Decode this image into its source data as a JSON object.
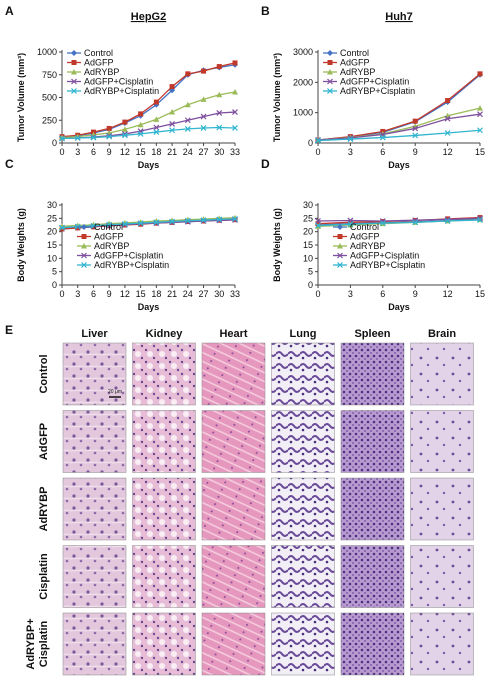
{
  "chart_data": [
    {
      "type": "line",
      "panel": "A",
      "title": "HepG2",
      "x_label": "Days",
      "y_label": "Tumor Volume (mm³)",
      "x": [
        0,
        3,
        6,
        9,
        12,
        15,
        18,
        21,
        24,
        27,
        30,
        33
      ],
      "xlim": [
        0,
        33
      ],
      "xticks": [
        0,
        3,
        6,
        9,
        12,
        15,
        18,
        21,
        24,
        27,
        30,
        33
      ],
      "ylim": [
        0,
        1000
      ],
      "yticks": [
        0,
        250,
        500,
        750,
        1000
      ],
      "legend": "upper left",
      "series": [
        {
          "name": "Control",
          "color": "#4472c4",
          "marker": "diamond",
          "values": [
            70,
            80,
            110,
            150,
            220,
            300,
            420,
            580,
            750,
            800,
            830,
            860
          ]
        },
        {
          "name": "AdGFP",
          "color": "#c0392b",
          "marker": "square",
          "values": [
            70,
            85,
            120,
            160,
            230,
            320,
            450,
            620,
            760,
            790,
            840,
            880
          ]
        },
        {
          "name": "AdRYBP",
          "color": "#9bbb59",
          "marker": "triangle",
          "values": [
            60,
            70,
            90,
            110,
            150,
            200,
            260,
            340,
            420,
            480,
            530,
            560
          ]
        },
        {
          "name": "AdGFP+Cisplatin",
          "color": "#7f4f9f",
          "marker": "x",
          "values": [
            50,
            55,
            65,
            80,
            100,
            130,
            170,
            210,
            250,
            290,
            330,
            340
          ]
        },
        {
          "name": "AdRYBP+Cisplatin",
          "color": "#31b5d0",
          "marker": "x",
          "values": [
            50,
            55,
            60,
            70,
            85,
            100,
            120,
            140,
            155,
            165,
            170,
            165
          ]
        }
      ]
    },
    {
      "type": "line",
      "panel": "B",
      "title": "Huh7",
      "x_label": "Days",
      "y_label": "Tumor Volume (mm³)",
      "x": [
        0,
        3,
        6,
        9,
        12,
        15
      ],
      "xlim": [
        0,
        15
      ],
      "xticks": [
        0,
        3,
        6,
        9,
        12,
        15
      ],
      "ylim": [
        0,
        3000
      ],
      "yticks": [
        0,
        1000,
        2000,
        3000
      ],
      "legend": "upper left",
      "series": [
        {
          "name": "Control",
          "color": "#4472c4",
          "marker": "diamond",
          "values": [
            100,
            200,
            350,
            700,
            1350,
            2250
          ]
        },
        {
          "name": "AdGFP",
          "color": "#c0392b",
          "marker": "square",
          "values": [
            100,
            210,
            380,
            720,
            1400,
            2280
          ]
        },
        {
          "name": "AdRYBP",
          "color": "#9bbb59",
          "marker": "triangle",
          "values": [
            100,
            180,
            300,
            550,
            900,
            1150
          ]
        },
        {
          "name": "AdGFP+Cisplatin",
          "color": "#7f4f9f",
          "marker": "x",
          "values": [
            100,
            170,
            280,
            480,
            800,
            950
          ]
        },
        {
          "name": "AdRYBP+Cisplatin",
          "color": "#31b5d0",
          "marker": "x",
          "values": [
            80,
            130,
            180,
            250,
            330,
            420
          ]
        }
      ]
    },
    {
      "type": "line",
      "panel": "C",
      "x_label": "Days",
      "y_label": "Body Weights (g)",
      "x": [
        0,
        3,
        6,
        9,
        12,
        15,
        18,
        21,
        24,
        27,
        30,
        33
      ],
      "xlim": [
        0,
        33
      ],
      "xticks": [
        0,
        3,
        6,
        9,
        12,
        15,
        18,
        21,
        24,
        27,
        30,
        33
      ],
      "ylim": [
        0,
        30
      ],
      "yticks": [
        0,
        5,
        10,
        15,
        20,
        25,
        30
      ],
      "legend": "center left",
      "series": [
        {
          "name": "Control",
          "color": "#4472c4",
          "marker": "diamond",
          "values": [
            21,
            21.5,
            22,
            22.3,
            22.6,
            23,
            23.3,
            23.6,
            24,
            24.2,
            24.5,
            24.7
          ]
        },
        {
          "name": "AdGFP",
          "color": "#c0392b",
          "marker": "square",
          "values": [
            21,
            21.4,
            21.8,
            22.2,
            22.5,
            22.8,
            23.2,
            23.5,
            23.8,
            24,
            24.3,
            24.5
          ]
        },
        {
          "name": "AdRYBP",
          "color": "#9bbb59",
          "marker": "triangle",
          "values": [
            22,
            22.3,
            22.6,
            23,
            23.3,
            23.6,
            24,
            24.2,
            24.5,
            24.7,
            25,
            25.2
          ]
        },
        {
          "name": "AdGFP+Cisplatin",
          "color": "#7f4f9f",
          "marker": "x",
          "values": [
            21.5,
            21.8,
            22,
            22.3,
            22.6,
            23,
            23.2,
            23.5,
            23.7,
            24,
            24.2,
            24.4
          ]
        },
        {
          "name": "AdRYBP+Cisplatin",
          "color": "#31b5d0",
          "marker": "x",
          "values": [
            21.5,
            21.9,
            22.2,
            22.6,
            22.9,
            23.2,
            23.5,
            23.8,
            24.1,
            24.3,
            24.6,
            24.8
          ]
        }
      ]
    },
    {
      "type": "line",
      "panel": "D",
      "x_label": "Days",
      "y_label": "Body Weights (g)",
      "x": [
        0,
        3,
        6,
        9,
        12,
        15
      ],
      "xlim": [
        0,
        15
      ],
      "xticks": [
        0,
        3,
        6,
        9,
        12,
        15
      ],
      "ylim": [
        0,
        30
      ],
      "yticks": [
        0,
        5,
        10,
        15,
        20,
        25,
        30
      ],
      "legend": "center left",
      "series": [
        {
          "name": "Control",
          "color": "#4472c4",
          "marker": "diamond",
          "values": [
            22.5,
            23,
            23.3,
            23.7,
            24.2,
            24.8
          ]
        },
        {
          "name": "AdGFP",
          "color": "#c0392b",
          "marker": "square",
          "values": [
            23,
            23.5,
            23.8,
            24.2,
            24.8,
            25.3
          ]
        },
        {
          "name": "AdRYBP",
          "color": "#9bbb59",
          "marker": "triangle",
          "values": [
            22,
            22.5,
            23,
            23.5,
            24,
            24.5
          ]
        },
        {
          "name": "AdGFP+Cisplatin",
          "color": "#7f4f9f",
          "marker": "x",
          "values": [
            24,
            24.2,
            24,
            24.3,
            24.6,
            25
          ]
        },
        {
          "name": "AdRYBP+Cisplatin",
          "color": "#31b5d0",
          "marker": "x",
          "values": [
            22.3,
            22.8,
            23.2,
            23.5,
            24,
            24.4
          ]
        }
      ]
    }
  ],
  "histology": {
    "panel": "E",
    "columns": [
      "Liver",
      "Kidney",
      "Heart",
      "Lung",
      "Spleen",
      "Brain"
    ],
    "rows": [
      [
        "Control"
      ],
      [
        "AdGFP"
      ],
      [
        "AdRYBP"
      ],
      [
        "Cisplatin"
      ],
      [
        "AdRYBP+",
        "Cisplatin"
      ]
    ],
    "scale_bar": "20 μm"
  }
}
